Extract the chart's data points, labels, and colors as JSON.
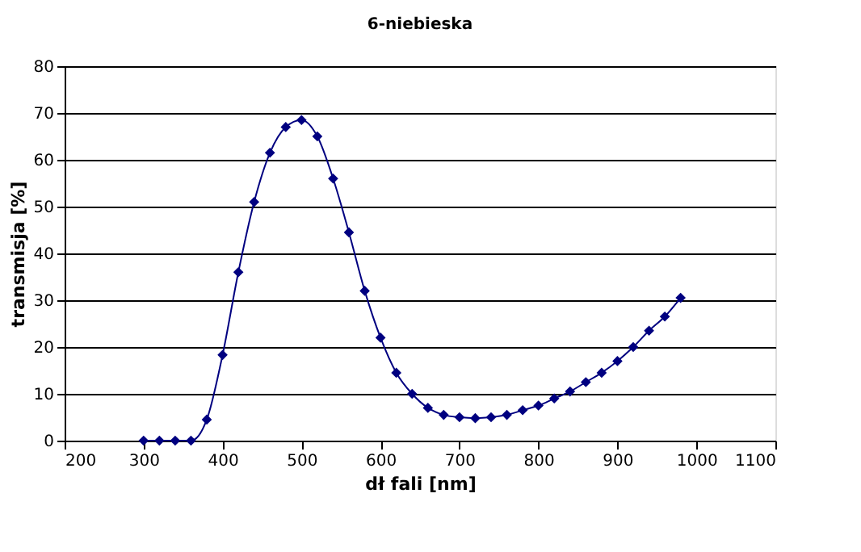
{
  "chart_data": {
    "type": "line",
    "title": "6-niebieska",
    "xlabel": "dł fali [nm]",
    "ylabel": "transmisja [%]",
    "x": [
      300,
      320,
      340,
      360,
      380,
      400,
      420,
      440,
      460,
      480,
      500,
      520,
      540,
      560,
      580,
      600,
      620,
      640,
      660,
      680,
      700,
      720,
      740,
      760,
      780,
      800,
      820,
      840,
      860,
      880,
      900,
      920,
      940,
      960,
      980
    ],
    "series": [
      {
        "color": "#000080",
        "values": [
          0,
          0,
          0,
          0,
          4.5,
          18.3,
          36,
          51,
          61.5,
          67,
          68.5,
          65,
          56,
          44.5,
          32,
          22,
          14.5,
          10,
          7,
          5.5,
          5,
          4.8,
          5,
          5.5,
          6.5,
          7.5,
          9,
          10.5,
          12.5,
          14.5,
          17,
          20,
          23.5,
          26.5,
          30.5
        ]
      }
    ],
    "xlim": [
      200,
      1100
    ],
    "xticks": [
      200,
      300,
      400,
      500,
      600,
      700,
      800,
      900,
      1000,
      1100
    ],
    "ylim": [
      0,
      80
    ],
    "yticks": [
      0,
      10,
      20,
      30,
      40,
      50,
      60,
      70,
      80
    ],
    "grid": "y",
    "marker": "diamond",
    "line_style": "solid"
  }
}
